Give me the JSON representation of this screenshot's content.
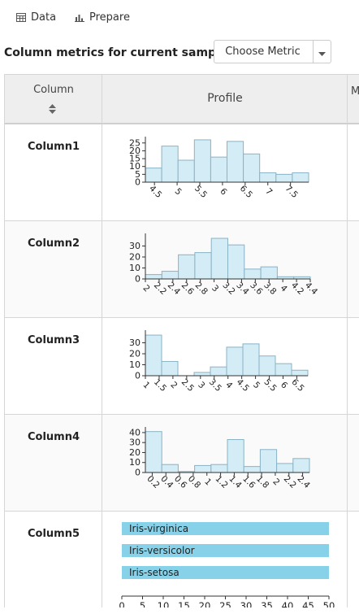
{
  "tabs": [
    {
      "label": "Data",
      "icon": "table-icon"
    },
    {
      "label": "Prepare",
      "icon": "bar-chart-icon"
    }
  ],
  "metrics": {
    "title": "Column metrics for current sample",
    "choose_label": "Choose Metric"
  },
  "table": {
    "headers": {
      "column": "Column",
      "profile": "Profile",
      "next": "M"
    }
  },
  "colors": {
    "bar_fill": "#d3ecf6",
    "bar_stroke": "#8ab3c5",
    "category_fill": "#87d2e8"
  },
  "rows": [
    {
      "name": "Column1"
    },
    {
      "name": "Column2"
    },
    {
      "name": "Column3"
    },
    {
      "name": "Column4"
    },
    {
      "name": "Column5"
    }
  ],
  "chart_data": [
    {
      "type": "bar",
      "column": "Column1",
      "x_ticks": [
        "4.5",
        "5",
        "5.5",
        "6",
        "6.5",
        "7",
        "7.5"
      ],
      "bins": [
        [
          4.3,
          4.66
        ],
        [
          4.66,
          5.02
        ],
        [
          5.02,
          5.38
        ],
        [
          5.38,
          5.74
        ],
        [
          5.74,
          6.1
        ],
        [
          6.1,
          6.46
        ],
        [
          6.46,
          6.82
        ],
        [
          6.82,
          7.18
        ],
        [
          7.18,
          7.54
        ],
        [
          7.54,
          7.9
        ]
      ],
      "values": [
        9,
        23,
        14,
        27,
        16,
        26,
        18,
        6,
        5,
        6
      ],
      "xlim": [
        4.3,
        7.9
      ],
      "ylim": [
        0,
        28
      ],
      "y_ticks": [
        0,
        5,
        10,
        15,
        20,
        25
      ]
    },
    {
      "type": "bar",
      "column": "Column2",
      "x_ticks": [
        "2",
        "2.2",
        "2.4",
        "2.6",
        "2.8",
        "3",
        "3.2",
        "3.4",
        "3.6",
        "3.8",
        "4",
        "4.2",
        "4.4"
      ],
      "bins": [
        [
          2.0,
          2.24
        ],
        [
          2.24,
          2.48
        ],
        [
          2.48,
          2.72
        ],
        [
          2.72,
          2.96
        ],
        [
          2.96,
          3.2
        ],
        [
          3.2,
          3.44
        ],
        [
          3.44,
          3.68
        ],
        [
          3.68,
          3.92
        ],
        [
          3.92,
          4.16
        ],
        [
          4.16,
          4.4
        ]
      ],
      "values": [
        4,
        7,
        22,
        24,
        37,
        31,
        9,
        11,
        2,
        2
      ],
      "xlim": [
        2.0,
        4.4
      ],
      "ylim": [
        0,
        40
      ],
      "y_ticks": [
        0,
        10,
        20,
        30
      ]
    },
    {
      "type": "bar",
      "column": "Column3",
      "x_ticks": [
        "1",
        "1.5",
        "2",
        "2.5",
        "3",
        "3.5",
        "4",
        "4.5",
        "5",
        "5.5",
        "6",
        "6.5"
      ],
      "bins": [
        [
          1.0,
          1.59
        ],
        [
          1.59,
          2.18
        ],
        [
          2.18,
          2.77
        ],
        [
          2.77,
          3.36
        ],
        [
          3.36,
          3.95
        ],
        [
          3.95,
          4.54
        ],
        [
          4.54,
          5.13
        ],
        [
          5.13,
          5.72
        ],
        [
          5.72,
          6.31
        ],
        [
          6.31,
          6.9
        ]
      ],
      "values": [
        37,
        13,
        0,
        3,
        8,
        26,
        29,
        18,
        11,
        5
      ],
      "xlim": [
        1.0,
        6.9
      ],
      "ylim": [
        0,
        40
      ],
      "y_ticks": [
        0,
        10,
        20,
        30
      ]
    },
    {
      "type": "bar",
      "column": "Column4",
      "x_ticks": [
        "0.2",
        "0.4",
        "0.6",
        "0.8",
        "1",
        "1.2",
        "1.4",
        "1.6",
        "1.8",
        "2",
        "2.2",
        "2.4"
      ],
      "bins": [
        [
          0.1,
          0.34
        ],
        [
          0.34,
          0.58
        ],
        [
          0.58,
          0.82
        ],
        [
          0.82,
          1.06
        ],
        [
          1.06,
          1.3
        ],
        [
          1.3,
          1.54
        ],
        [
          1.54,
          1.78
        ],
        [
          1.78,
          2.02
        ],
        [
          2.02,
          2.26
        ],
        [
          2.26,
          2.5
        ]
      ],
      "values": [
        41,
        8,
        1,
        7,
        8,
        33,
        6,
        23,
        9,
        14
      ],
      "xlim": [
        0.1,
        2.5
      ],
      "ylim": [
        0,
        44
      ],
      "y_ticks": [
        0,
        10,
        20,
        30,
        40
      ]
    },
    {
      "type": "bar",
      "column": "Column5",
      "orientation": "horizontal",
      "categories": [
        "Iris-virginica",
        "Iris-versicolor",
        "Iris-setosa"
      ],
      "values": [
        50,
        50,
        50
      ],
      "xlim": [
        0,
        50
      ],
      "x_ticks": [
        0,
        5,
        10,
        15,
        20,
        25,
        30,
        35,
        40,
        45,
        50
      ]
    }
  ]
}
